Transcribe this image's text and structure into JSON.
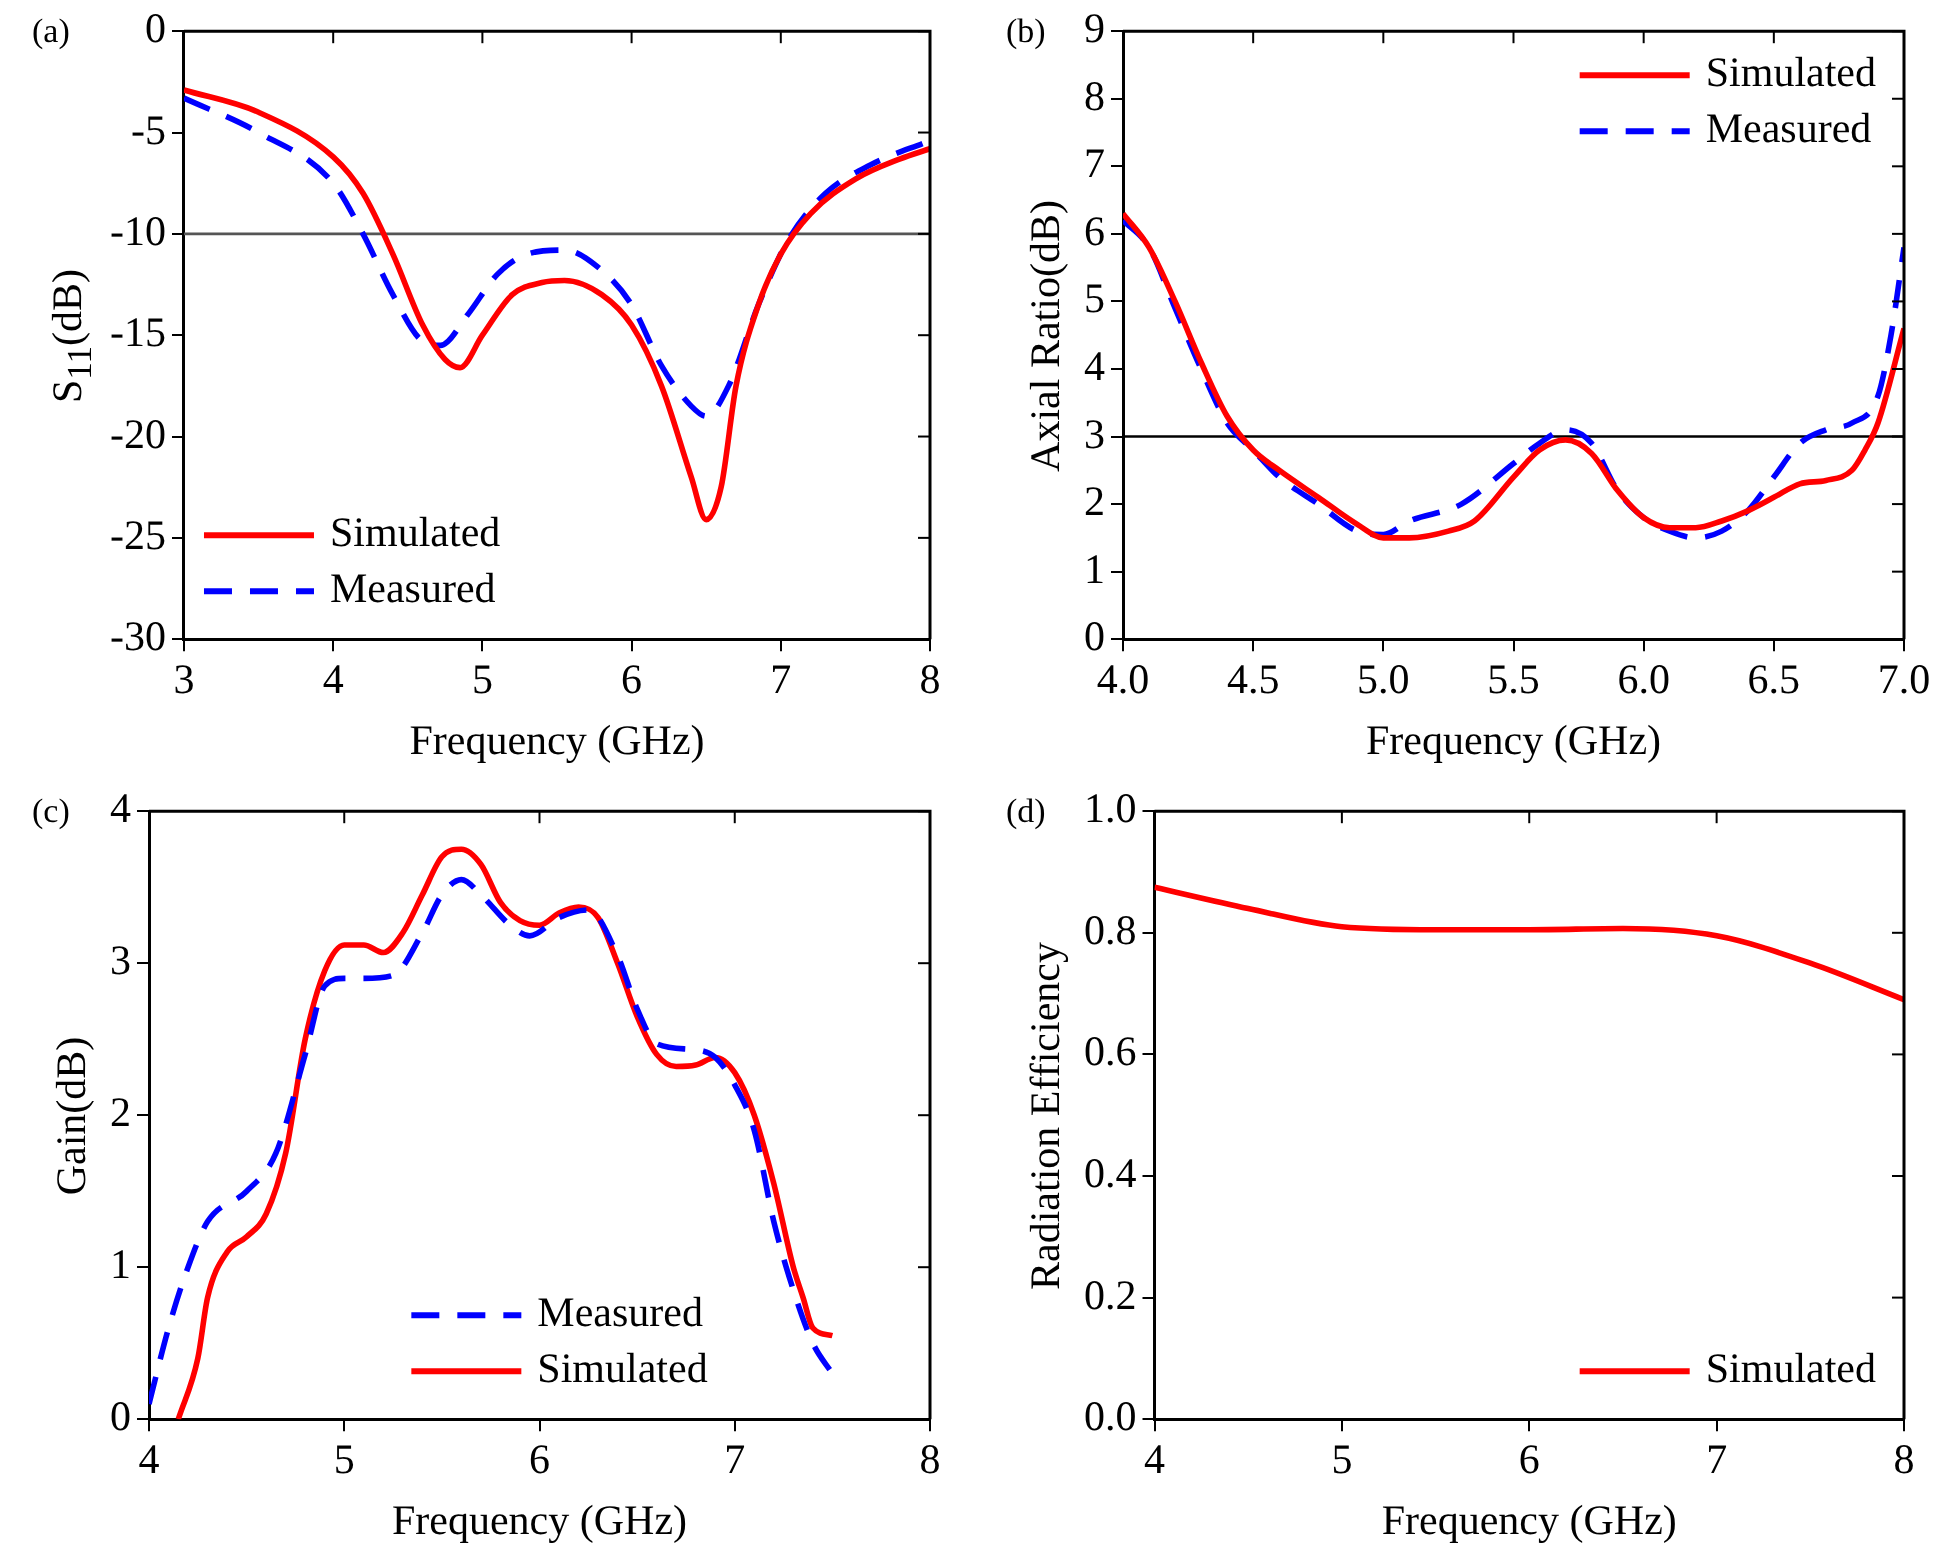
{
  "chart_data": [
    {
      "type": "line",
      "annotations": [
        "(a)"
      ],
      "xlabel": "Frequency (GHz)",
      "ylabel": "S$_{11}$(dB)",
      "xlim": [
        3,
        8
      ],
      "xticks": [
        3,
        4,
        5,
        6,
        7,
        8
      ],
      "ylim": [
        -30,
        0
      ],
      "yticks": [
        -30,
        -25,
        -20,
        -15,
        -10,
        -5,
        0
      ],
      "legend": "bottom left",
      "ref_lines": [
        {
          "axis": "y",
          "value": -10,
          "color": "#555555"
        }
      ],
      "series": [
        {
          "name": "Simulated",
          "color": "#ff0000",
          "line_style": "solid",
          "x": [
            3,
            3.5,
            4,
            4.2,
            4.4,
            4.6,
            4.75,
            4.85,
            5,
            5.2,
            5.4,
            5.55,
            5.8,
            6,
            6.2,
            6.4,
            6.5,
            6.6,
            6.7,
            6.85,
            7,
            7.2,
            7.5,
            7.8,
            8
          ],
          "values": [
            -2.9,
            -4.0,
            -6.2,
            -8.0,
            -11.0,
            -14.5,
            -16.2,
            -16.6,
            -15.0,
            -13.0,
            -12.4,
            -12.3,
            -13.0,
            -14.5,
            -17.5,
            -22,
            -24.1,
            -22.5,
            -17.5,
            -13.5,
            -11,
            -9,
            -7.3,
            -6.3,
            -5.8
          ]
        },
        {
          "name": "Measured",
          "color": "#0000ff",
          "line_style": "dashed",
          "x": [
            3,
            3.5,
            4,
            4.2,
            4.4,
            4.6,
            4.72,
            4.9,
            5.1,
            5.3,
            5.55,
            5.8,
            6,
            6.2,
            6.4,
            6.5,
            6.65,
            6.85,
            7.05,
            7.3,
            7.6,
            8
          ],
          "values": [
            -3.3,
            -5.0,
            -7.5,
            -10.0,
            -13.0,
            -15.3,
            -15.5,
            -14.0,
            -12.0,
            -11.0,
            -10.8,
            -11.8,
            -13.5,
            -16.5,
            -18.5,
            -19.0,
            -17.5,
            -13.5,
            -10.3,
            -8.0,
            -6.6,
            -5.4
          ]
        }
      ]
    },
    {
      "type": "line",
      "annotations": [
        "(b)"
      ],
      "xlabel": "Frequency (GHz)",
      "ylabel": "Axial Ratio(dB)",
      "xlim": [
        4,
        7
      ],
      "xticks": [
        {
          "value": 4,
          "label": "4.0"
        },
        4.5,
        {
          "value": 5,
          "label": "5.0"
        },
        5.5,
        {
          "value": 6,
          "label": "6.0"
        },
        6.5,
        {
          "value": 7,
          "label": "7.0"
        }
      ],
      "ylim": [
        0,
        9
      ],
      "yticks": [
        0,
        1,
        2,
        3,
        4,
        5,
        6,
        7,
        8,
        9
      ],
      "legend": "top right",
      "ref_lines": [
        {
          "axis": "y",
          "value": 3,
          "color": "#000000"
        }
      ],
      "series": [
        {
          "name": "Simulated",
          "color": "#ff0000",
          "line_style": "solid",
          "x": [
            4,
            4.1,
            4.2,
            4.3,
            4.4,
            4.5,
            4.6,
            4.75,
            4.9,
            5.0,
            5.1,
            5.25,
            5.35,
            5.5,
            5.6,
            5.7,
            5.8,
            5.9,
            6.0,
            6.1,
            6.2,
            6.3,
            6.4,
            6.5,
            6.6,
            6.7,
            6.8,
            6.85,
            6.9,
            7.0
          ],
          "values": [
            6.3,
            5.8,
            5.0,
            4.1,
            3.3,
            2.8,
            2.5,
            2.1,
            1.7,
            1.5,
            1.5,
            1.6,
            1.75,
            2.4,
            2.8,
            2.95,
            2.75,
            2.2,
            1.8,
            1.65,
            1.65,
            1.75,
            1.9,
            2.1,
            2.3,
            2.35,
            2.5,
            2.8,
            3.2,
            4.6
          ]
        },
        {
          "name": "Measured",
          "color": "#0000ff",
          "line_style": "dashed",
          "x": [
            4,
            4.1,
            4.2,
            4.3,
            4.4,
            4.5,
            4.6,
            4.75,
            4.9,
            5.0,
            5.1,
            5.3,
            5.5,
            5.6,
            5.7,
            5.8,
            5.9,
            6.0,
            6.1,
            6.2,
            6.3,
            6.4,
            6.5,
            6.6,
            6.7,
            6.8,
            6.9,
            6.95,
            7.0
          ],
          "values": [
            6.2,
            5.8,
            4.9,
            4.0,
            3.2,
            2.8,
            2.4,
            2.0,
            1.6,
            1.55,
            1.75,
            2.0,
            2.6,
            2.9,
            3.1,
            2.9,
            2.2,
            1.8,
            1.6,
            1.5,
            1.6,
            1.9,
            2.4,
            2.9,
            3.1,
            3.2,
            3.6,
            4.5,
            5.8
          ]
        }
      ]
    },
    {
      "type": "line",
      "annotations": [
        "(c)"
      ],
      "xlabel": "Frequency (GHz)",
      "ylabel": "Gain(dB)",
      "xlim": [
        4,
        8
      ],
      "xticks": [
        4,
        5,
        6,
        7,
        8
      ],
      "ylim": [
        0,
        4
      ],
      "yticks": [
        0,
        1,
        2,
        3,
        4
      ],
      "legend": "bottom",
      "series": [
        {
          "name": "Measured",
          "color": "#0000ff",
          "line_style": "dashed",
          "x": [
            4.0,
            4.1,
            4.2,
            4.3,
            4.5,
            4.65,
            4.8,
            4.9,
            5.0,
            5.1,
            5.25,
            5.4,
            5.5,
            5.6,
            5.7,
            5.85,
            5.95,
            6.1,
            6.25,
            6.4,
            6.5,
            6.6,
            6.8,
            6.9,
            7.0,
            7.1,
            7.2,
            7.3,
            7.4,
            7.5
          ],
          "values": [
            0.1,
            0.6,
            1.0,
            1.3,
            1.5,
            1.75,
            2.4,
            2.85,
            2.9,
            2.9,
            2.92,
            3.2,
            3.45,
            3.55,
            3.45,
            3.25,
            3.18,
            3.3,
            3.35,
            3.05,
            2.7,
            2.47,
            2.43,
            2.38,
            2.2,
            1.9,
            1.3,
            0.85,
            0.5,
            0.3
          ]
        },
        {
          "name": "Simulated",
          "color": "#ff0000",
          "line_style": "solid",
          "x": [
            4.15,
            4.25,
            4.3,
            4.4,
            4.5,
            4.6,
            4.7,
            4.8,
            4.9,
            5.0,
            5.1,
            5.2,
            5.3,
            5.4,
            5.5,
            5.6,
            5.7,
            5.8,
            5.9,
            6.0,
            6.1,
            6.2,
            6.3,
            6.4,
            6.5,
            6.6,
            6.7,
            6.8,
            6.9,
            7.0,
            7.1,
            7.2,
            7.3,
            7.35,
            7.4,
            7.5
          ],
          "values": [
            0,
            0.4,
            0.8,
            1.1,
            1.2,
            1.35,
            1.75,
            2.5,
            2.95,
            3.12,
            3.12,
            3.07,
            3.2,
            3.45,
            3.7,
            3.75,
            3.65,
            3.4,
            3.28,
            3.25,
            3.33,
            3.37,
            3.3,
            3.0,
            2.65,
            2.4,
            2.32,
            2.33,
            2.38,
            2.28,
            2.0,
            1.55,
            1.0,
            0.8,
            0.6,
            0.55
          ]
        }
      ]
    },
    {
      "type": "line",
      "annotations": [
        "(d)"
      ],
      "xlabel": "Frequency (GHz)",
      "ylabel": "Radiation Efficiency",
      "xlim": [
        4,
        8
      ],
      "xticks": [
        4,
        5,
        6,
        7,
        8
      ],
      "ylim": [
        0,
        1
      ],
      "yticks": [
        {
          "value": 0,
          "label": "0.0"
        },
        0.2,
        0.4,
        0.6,
        0.8,
        {
          "value": 1,
          "label": "1.0"
        }
      ],
      "legend": "bottom right",
      "series": [
        {
          "name": "Simulated",
          "color": "#ff0000",
          "line_style": "solid",
          "x": [
            4,
            4.5,
            5,
            5.5,
            6,
            6.5,
            7,
            7.5,
            8
          ],
          "values": [
            0.875,
            0.84,
            0.81,
            0.805,
            0.805,
            0.807,
            0.795,
            0.75,
            0.69
          ]
        }
      ]
    }
  ]
}
